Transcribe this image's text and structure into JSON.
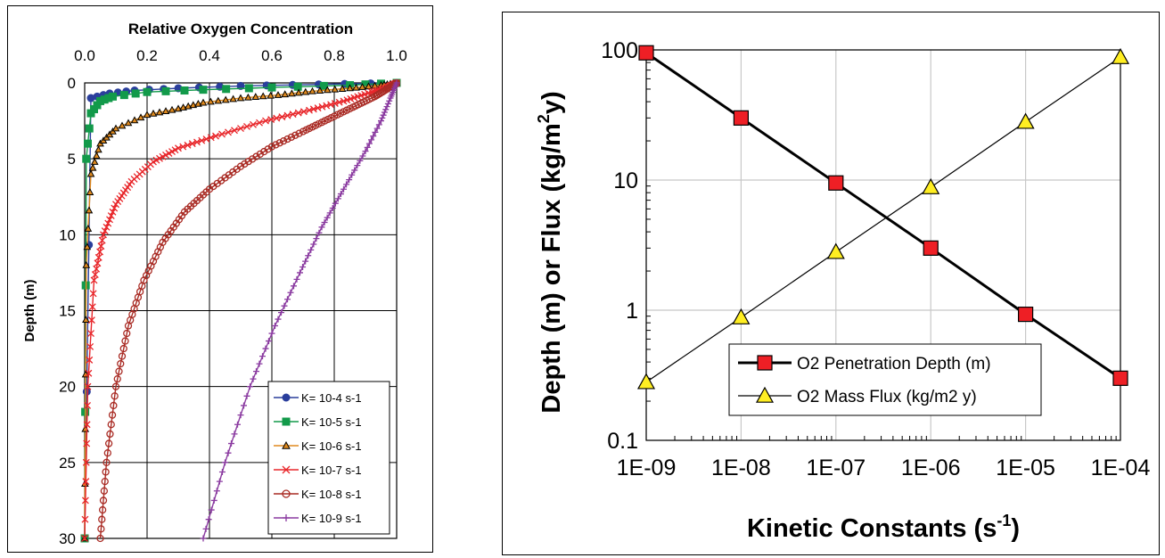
{
  "chart_data": [
    {
      "type": "line",
      "title": "Relative Oxygen Concentration",
      "xlabel": "Relative Oxygen Concentration",
      "ylabel": "Depth (m)",
      "xlim": [
        0,
        1
      ],
      "ylim": [
        0,
        30
      ],
      "y_inverted": true,
      "x_axis_position": "top",
      "x_ticks": [
        "0.0",
        "0.2",
        "0.4",
        "0.6",
        "0.8",
        "1.0"
      ],
      "y_ticks": [
        "0",
        "5",
        "10",
        "15",
        "20",
        "25",
        "30"
      ],
      "grid": true,
      "legend_position": "bottom-right",
      "series": [
        {
          "name": "K= 10-4 s-1",
          "color": "#2a3e9c",
          "marker": "circle-filled",
          "x": [
            0.0,
            0.02,
            0.08,
            0.16,
            0.3,
            0.5,
            0.75,
            1.0
          ],
          "y": [
            30,
            1.0,
            0.7,
            0.5,
            0.35,
            0.2,
            0.1,
            0.0
          ]
        },
        {
          "name": "K= 10-5 s-1",
          "color": "#129a4a",
          "marker": "square-filled",
          "x": [
            0.0,
            0.005,
            0.02,
            0.05,
            0.09,
            0.2,
            0.38,
            0.6,
            0.85,
            1.0
          ],
          "y": [
            30,
            5.0,
            2.0,
            1.2,
            0.9,
            0.6,
            0.45,
            0.3,
            0.15,
            0.0
          ]
        },
        {
          "name": "K= 10-6 s-1",
          "color": "#e08a1e",
          "marker": "triangle-open",
          "x": [
            0.0,
            0.005,
            0.02,
            0.05,
            0.1,
            0.2,
            0.3,
            0.38,
            0.5,
            0.62,
            0.73,
            0.85,
            0.95,
            1.0
          ],
          "y": [
            30,
            12.0,
            6.0,
            4.0,
            3.0,
            2.1,
            1.7,
            1.3,
            1.0,
            0.8,
            0.55,
            0.35,
            0.15,
            0.0
          ]
        },
        {
          "name": "K= 10-7 s-1",
          "color": "#e8262a",
          "marker": "x",
          "x": [
            0.0,
            0.01,
            0.03,
            0.06,
            0.1,
            0.15,
            0.22,
            0.3,
            0.42,
            0.58,
            0.72,
            0.83,
            0.92,
            0.97,
            1.0
          ],
          "y": [
            30,
            20.0,
            13.0,
            10.0,
            8.0,
            6.5,
            5.2,
            4.3,
            3.5,
            2.5,
            1.8,
            1.2,
            0.6,
            0.3,
            0.0
          ]
        },
        {
          "name": "K= 10-8 s-1",
          "color": "#a92b24",
          "marker": "circle-open",
          "x": [
            0.05,
            0.07,
            0.1,
            0.14,
            0.19,
            0.25,
            0.32,
            0.4,
            0.5,
            0.6,
            0.7,
            0.78,
            0.86,
            0.93,
            0.97,
            1.0
          ],
          "y": [
            30,
            25.0,
            20.0,
            16.0,
            13.0,
            10.5,
            8.5,
            7.0,
            5.5,
            4.2,
            3.2,
            2.4,
            1.6,
            0.9,
            0.4,
            0.0
          ]
        },
        {
          "name": "K= 10-9 s-1",
          "color": "#8a3aa0",
          "marker": "plus",
          "x": [
            0.38,
            0.45,
            0.53,
            0.61,
            0.69,
            0.76,
            0.83,
            0.9,
            0.95,
            0.98,
            1.0
          ],
          "y": [
            30,
            25.0,
            20.0,
            16.0,
            12.5,
            9.5,
            7.0,
            4.5,
            2.5,
            1.0,
            0.0
          ]
        }
      ]
    },
    {
      "type": "line",
      "x_scale": "log",
      "y_scale": "log",
      "xlabel": "Kinetic Constants (s",
      "xlabel_sup": "-1",
      "xlabel_close": ")",
      "ylabel": "Depth (m) or Flux (kg/m",
      "ylabel_sup": "2",
      "ylabel_close": "y)",
      "xlim": [
        1e-09,
        0.0001
      ],
      "ylim": [
        0.1,
        100
      ],
      "x_ticks": [
        "1E-09",
        "1E-08",
        "1E-07",
        "1E-06",
        "1E-05",
        "1E-04"
      ],
      "y_ticks": [
        "0.1",
        "1",
        "10",
        "100"
      ],
      "grid": true,
      "legend_position": "bottom-right",
      "x": [
        1e-09,
        1e-08,
        1e-07,
        1e-06,
        1e-05,
        0.0001
      ],
      "series": [
        {
          "name": "O2 Penetration Depth (m)",
          "color": "#ee1f25",
          "marker": "square",
          "values": [
            95,
            30,
            9.5,
            3.0,
            0.93,
            0.3
          ]
        },
        {
          "name": "O2 Mass Flux (kg/m2 y)",
          "color": "#ffee22",
          "marker": "triangle",
          "values": [
            0.28,
            0.88,
            2.8,
            8.8,
            28,
            88
          ]
        }
      ]
    }
  ]
}
